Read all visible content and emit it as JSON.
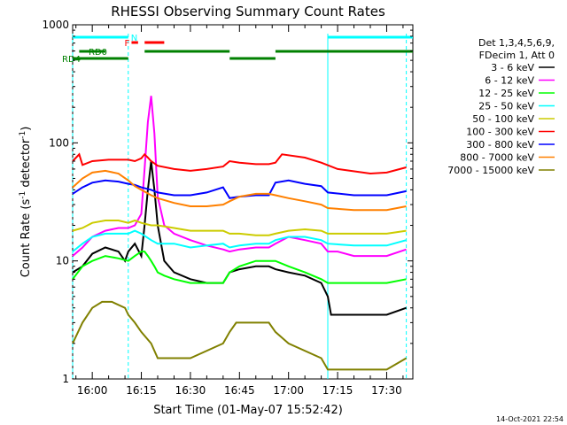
{
  "chart_data": {
    "type": "line",
    "title": "RHESSI Observing Summary Count Rates",
    "xlabel": "Start Time (01-May-07 15:52:42)",
    "ylabel_main": "Count Rate (s",
    "ylabel_sup1": "-1",
    "ylabel_mid": " detector",
    "ylabel_sup2": "-1",
    "ylabel_end": ")",
    "yscale": "log",
    "ylim": [
      1,
      1000
    ],
    "xlim_minutes": [
      -6,
      98
    ],
    "x_tick_labels": [
      "16:00",
      "16:15",
      "16:30",
      "16:45",
      "17:00",
      "17:15",
      "17:30"
    ],
    "x_tick_minutes": [
      0,
      15,
      30,
      45,
      60,
      75,
      90
    ],
    "y_tick_labels": [
      "1",
      "10",
      "100",
      "1000"
    ],
    "y_tick_values": [
      1,
      10,
      100,
      1000
    ],
    "legend_header": [
      "Det 1,3,4,5,6,9,",
      "FDecim 1, Att 0"
    ],
    "footer_timestamp": "14-Oct-2021 22:54",
    "flags": [
      {
        "label": "N",
        "color": "#00ffff",
        "segments": [
          [
            -7,
            11
          ],
          [
            72,
            98
          ]
        ]
      },
      {
        "label": "F",
        "color": "#ff0000",
        "segments": [
          [
            12,
            14
          ],
          [
            16,
            22
          ]
        ]
      },
      {
        "label": "RD0",
        "color": "#008000",
        "segments": [
          [
            -4,
            4
          ],
          [
            16,
            42
          ],
          [
            56,
            98
          ]
        ]
      },
      {
        "label": "RD4",
        "color": "#008000",
        "segments": [
          [
            -7,
            11
          ],
          [
            42,
            56
          ]
        ]
      }
    ],
    "night_boundaries_minutes": [
      -6,
      11,
      72,
      96
    ],
    "series": [
      {
        "name": "3 - 6 keV",
        "color": "#000000",
        "x": [
          -6,
          -3,
          0,
          4,
          8,
          10,
          11,
          13,
          15,
          16,
          17,
          18,
          19,
          20,
          22,
          25,
          30,
          35,
          40,
          42,
          45,
          50,
          54,
          56,
          60,
          65,
          70,
          72,
          73,
          78,
          85,
          90,
          96
        ],
        "y": [
          8,
          9,
          11.5,
          13,
          12,
          10,
          12,
          14,
          11,
          20,
          40,
          70,
          40,
          20,
          10,
          8,
          7,
          6.5,
          6.5,
          8,
          8.5,
          9,
          9,
          8.5,
          8,
          7.5,
          6.5,
          5,
          3.5,
          3.5,
          3.5,
          3.5,
          4
        ]
      },
      {
        "name": "6 - 12 keV",
        "color": "#ff00ff",
        "x": [
          -6,
          -3,
          0,
          4,
          8,
          11,
          13,
          15,
          16,
          17,
          18,
          19,
          20,
          22,
          25,
          30,
          35,
          40,
          42,
          45,
          50,
          54,
          56,
          60,
          65,
          70,
          72,
          75,
          80,
          90,
          96
        ],
        "y": [
          11,
          13,
          16,
          18,
          19,
          19,
          20,
          25,
          60,
          150,
          250,
          120,
          35,
          20,
          17,
          15,
          13.5,
          12.5,
          12,
          12.5,
          13,
          13,
          14,
          16,
          15,
          14,
          12,
          12,
          11,
          11,
          12.5
        ]
      },
      {
        "name": "12 - 25 keV",
        "color": "#00ff00",
        "x": [
          -6,
          -3,
          0,
          4,
          8,
          11,
          13,
          15,
          16,
          17,
          18,
          19,
          20,
          22,
          25,
          30,
          35,
          40,
          42,
          45,
          50,
          54,
          56,
          60,
          65,
          70,
          72,
          75,
          80,
          90,
          96
        ],
        "y": [
          7,
          9,
          10,
          11,
          10.5,
          10,
          11,
          12,
          12,
          11,
          10,
          9,
          8,
          7.5,
          7,
          6.5,
          6.5,
          6.5,
          8,
          9,
          10,
          10,
          10,
          9,
          8,
          7,
          6.5,
          6.5,
          6.5,
          6.5,
          7
        ]
      },
      {
        "name": "25 - 50 keV",
        "color": "#00ffff",
        "x": [
          -6,
          -3,
          0,
          4,
          8,
          11,
          13,
          15,
          18,
          20,
          25,
          30,
          35,
          40,
          42,
          45,
          50,
          54,
          56,
          60,
          65,
          70,
          72,
          80,
          90,
          96
        ],
        "y": [
          12,
          14,
          16,
          17,
          17,
          17,
          18,
          17,
          15,
          14,
          14,
          13,
          13.5,
          14,
          13,
          13.5,
          14,
          14,
          15,
          16,
          16,
          15,
          14,
          13.5,
          13.5,
          15
        ]
      },
      {
        "name": "50 - 100 keV",
        "color": "#cccc00",
        "x": [
          -6,
          -3,
          0,
          4,
          8,
          11,
          13,
          15,
          18,
          20,
          25,
          30,
          35,
          40,
          42,
          45,
          50,
          54,
          56,
          60,
          65,
          70,
          72,
          80,
          90,
          96
        ],
        "y": [
          18,
          19,
          21,
          22,
          22,
          21,
          22,
          21,
          20,
          20,
          19,
          18,
          18,
          18,
          17,
          17,
          16.5,
          16.5,
          17,
          18,
          18.5,
          18,
          17,
          17,
          17,
          18
        ]
      },
      {
        "name": "100 - 300 keV",
        "color": "#ff0000",
        "x": [
          -6,
          -4,
          -3,
          0,
          5,
          11,
          13,
          15,
          16,
          17,
          18,
          20,
          25,
          30,
          35,
          40,
          42,
          45,
          50,
          54,
          56,
          58,
          65,
          70,
          75,
          85,
          90,
          96
        ],
        "y": [
          70,
          80,
          65,
          70,
          72,
          72,
          70,
          74,
          80,
          75,
          70,
          64,
          60,
          58,
          60,
          63,
          70,
          68,
          66,
          66,
          68,
          80,
          75,
          68,
          60,
          55,
          56,
          62
        ]
      },
      {
        "name": "300 - 800 keV",
        "color": "#0000ff",
        "x": [
          -6,
          -3,
          0,
          4,
          8,
          11,
          13,
          15,
          18,
          20,
          25,
          30,
          35,
          40,
          42,
          45,
          50,
          54,
          56,
          60,
          65,
          70,
          72,
          80,
          90,
          96
        ],
        "y": [
          37,
          42,
          46,
          48,
          47,
          45,
          44,
          42,
          40,
          38,
          36,
          36,
          38,
          42,
          34,
          35,
          36,
          36,
          46,
          48,
          45,
          43,
          38,
          36,
          36,
          39
        ]
      },
      {
        "name": "800 - 7000 keV",
        "color": "#ff8000",
        "x": [
          -6,
          -3,
          0,
          4,
          8,
          11,
          13,
          15,
          18,
          20,
          25,
          30,
          35,
          40,
          42,
          45,
          50,
          54,
          56,
          60,
          65,
          70,
          72,
          80,
          90,
          96
        ],
        "y": [
          42,
          50,
          56,
          58,
          55,
          48,
          43,
          40,
          36,
          34,
          31,
          29,
          29,
          30,
          32,
          35,
          37,
          37,
          36,
          34,
          32,
          30,
          28,
          27,
          27,
          29
        ]
      },
      {
        "name": "7000 - 15000 keV",
        "color": "#808000",
        "x": [
          -6,
          -3,
          0,
          3,
          6,
          10,
          11,
          13,
          15,
          18,
          20,
          30,
          40,
          42,
          44,
          50,
          54,
          56,
          60,
          70,
          72,
          80,
          90,
          96
        ],
        "y": [
          2,
          3,
          4,
          4.5,
          4.5,
          4,
          3.5,
          3,
          2.5,
          2,
          1.5,
          1.5,
          2,
          2.5,
          3,
          3,
          3,
          2.5,
          2,
          1.5,
          1.2,
          1.2,
          1.2,
          1.5
        ]
      }
    ]
  }
}
